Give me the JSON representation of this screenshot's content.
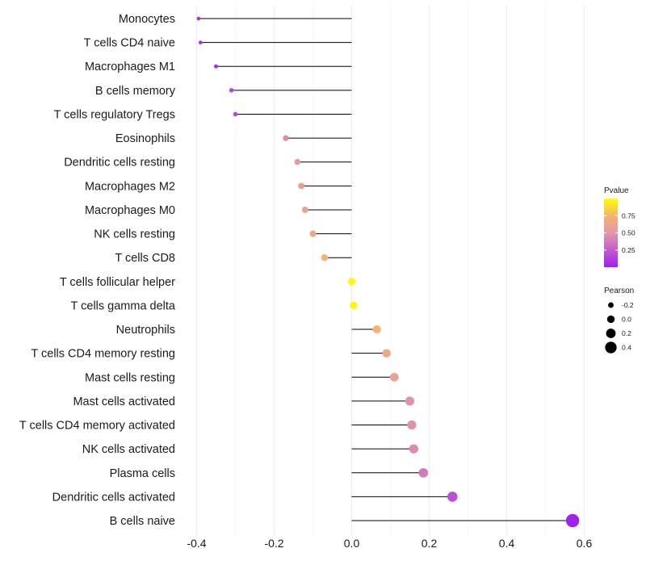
{
  "chart_data": {
    "type": "lollipop",
    "title": "",
    "xlabel": "",
    "ylabel": "",
    "xlim": [
      -0.42,
      0.62
    ],
    "x_ticks": [
      "-0.4",
      "-0.2",
      "0.0",
      "0.2",
      "0.4",
      "0.6"
    ],
    "x_tick_values": [
      -0.4,
      -0.2,
      0.0,
      0.2,
      0.4,
      0.6
    ],
    "grid": true,
    "categories": [
      "Monocytes",
      "T cells CD4 naive",
      "Macrophages M1",
      "B cells memory",
      "T cells regulatory  Tregs",
      "Eosinophils",
      "Dendritic cells resting",
      "Macrophages M2",
      "Macrophages M0",
      "NK cells resting",
      "T cells CD8",
      "T cells follicular helper",
      "T cells gamma delta",
      "Neutrophils",
      "T cells CD4 memory resting",
      "Mast cells resting",
      "Mast cells activated",
      "T cells CD4 memory activated",
      "NK cells activated",
      "Plasma cells",
      "Dendritic cells activated",
      "B cells naive"
    ],
    "pearson": [
      -0.395,
      -0.39,
      -0.35,
      -0.31,
      -0.3,
      -0.17,
      -0.14,
      -0.13,
      -0.12,
      -0.1,
      -0.07,
      0.0,
      0.005,
      0.065,
      0.09,
      0.11,
      0.15,
      0.155,
      0.16,
      0.185,
      0.26,
      0.57
    ],
    "pvalue": [
      0.04,
      0.04,
      0.06,
      0.15,
      0.18,
      0.45,
      0.55,
      0.58,
      0.6,
      0.65,
      0.75,
      0.98,
      0.97,
      0.75,
      0.65,
      0.6,
      0.48,
      0.48,
      0.45,
      0.38,
      0.2,
      0.01
    ],
    "legend": {
      "color_title": "Pvalue",
      "color_ticks": [
        "0.75",
        "0.50",
        "0.25"
      ],
      "color_tick_values": [
        0.75,
        0.5,
        0.25
      ],
      "color_range": [
        0.0,
        1.0
      ],
      "colors": {
        "low": "#a020f0",
        "mid": "#f4a582",
        "high": "#ffff00"
      },
      "size_title": "Pearson",
      "size_ticks": [
        "-0.2",
        "0.0",
        "0.2",
        "0.4"
      ],
      "size_tick_values": [
        -0.2,
        0.0,
        0.2,
        0.4
      ],
      "placement": "right"
    }
  }
}
